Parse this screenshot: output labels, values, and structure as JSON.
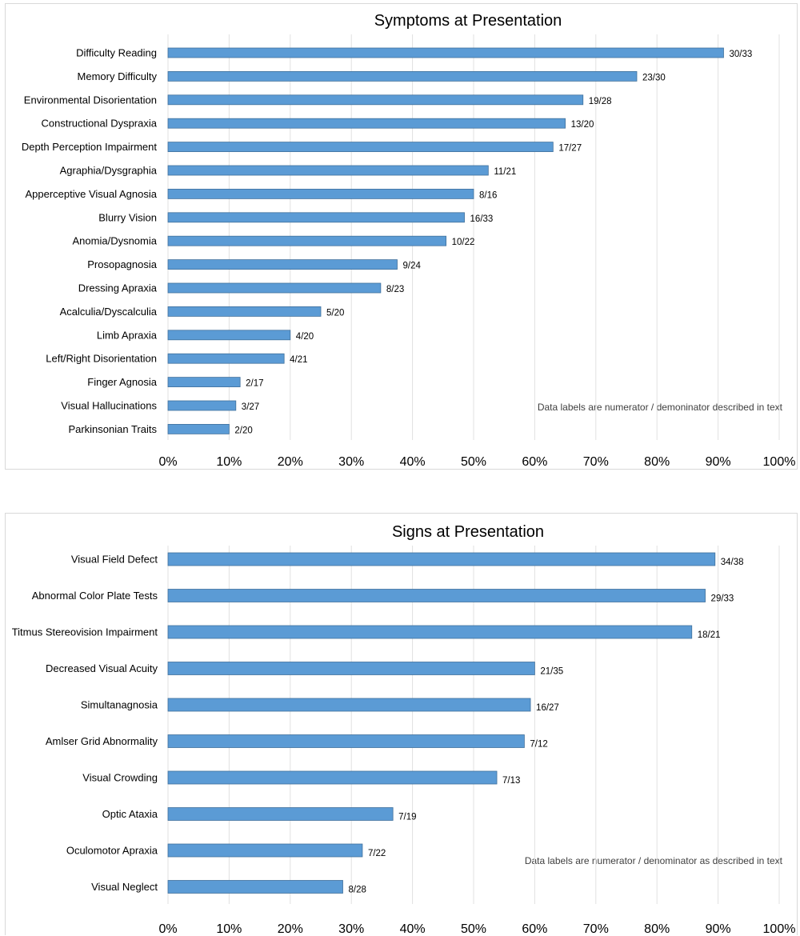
{
  "chart_data": [
    {
      "type": "bar",
      "orientation": "horizontal",
      "title": "Symptoms at Presentation",
      "categories": [
        "Difficulty Reading",
        "Memory Difficulty",
        "Environmental Disorientation",
        "Constructional Dyspraxia",
        "Depth Perception Impairment",
        "Agraphia/Dysgraphia",
        "Apperceptive Visual Agnosia",
        "Blurry Vision",
        "Anomia/Dysnomia",
        "Prosopagnosia",
        "Dressing Apraxia",
        "Acalculia/Dyscalculia",
        "Limb Apraxia",
        "Left/Right Disorientation",
        "Finger Agnosia",
        "Visual Hallucinations",
        "Parkinsonian Traits"
      ],
      "values": [
        90.9,
        76.7,
        67.9,
        65.0,
        63.0,
        52.4,
        50.0,
        48.5,
        45.5,
        37.5,
        34.8,
        25.0,
        20.0,
        19.0,
        11.8,
        11.1,
        10.0
      ],
      "data_labels": [
        "30/33",
        "23/30",
        "19/28",
        "13/20",
        "17/27",
        "11/21",
        "8/16",
        "16/33",
        "10/22",
        "9/24",
        "8/23",
        "5/20",
        "4/20",
        "4/21",
        "2/17",
        "3/27",
        "2/20"
      ],
      "xlim": [
        0,
        100
      ],
      "x_ticks": [
        "0%",
        "10%",
        "20%",
        "30%",
        "40%",
        "50%",
        "60%",
        "70%",
        "80%",
        "90%",
        "100%"
      ],
      "grid": true,
      "legend": "none",
      "annotation": "Data labels are numerator / demoninator described in text",
      "color": "#5b9bd5"
    },
    {
      "type": "bar",
      "orientation": "horizontal",
      "title": "Signs at Presentation",
      "categories": [
        "Visual Field Defect",
        "Abnormal Color Plate Tests",
        "Titmus Stereovision Impairment",
        "Decreased Visual Acuity",
        "Simultanagnosia",
        "Amlser Grid Abnormality",
        "Visual Crowding",
        "Optic Ataxia",
        "Oculomotor Apraxia",
        "Visual Neglect"
      ],
      "values": [
        89.5,
        87.9,
        85.7,
        60.0,
        59.3,
        58.3,
        53.8,
        36.8,
        31.8,
        28.6
      ],
      "data_labels": [
        "34/38",
        "29/33",
        "18/21",
        "21/35",
        "16/27",
        "7/12",
        "7/13",
        "7/19",
        "7/22",
        "8/28"
      ],
      "xlim": [
        0,
        100
      ],
      "x_ticks": [
        "0%",
        "10%",
        "20%",
        "30%",
        "40%",
        "50%",
        "60%",
        "70%",
        "80%",
        "90%",
        "100%"
      ],
      "grid": true,
      "legend": "none",
      "annotation": "Data labels are numerator / denominator as described in text",
      "color": "#5b9bd5"
    }
  ]
}
